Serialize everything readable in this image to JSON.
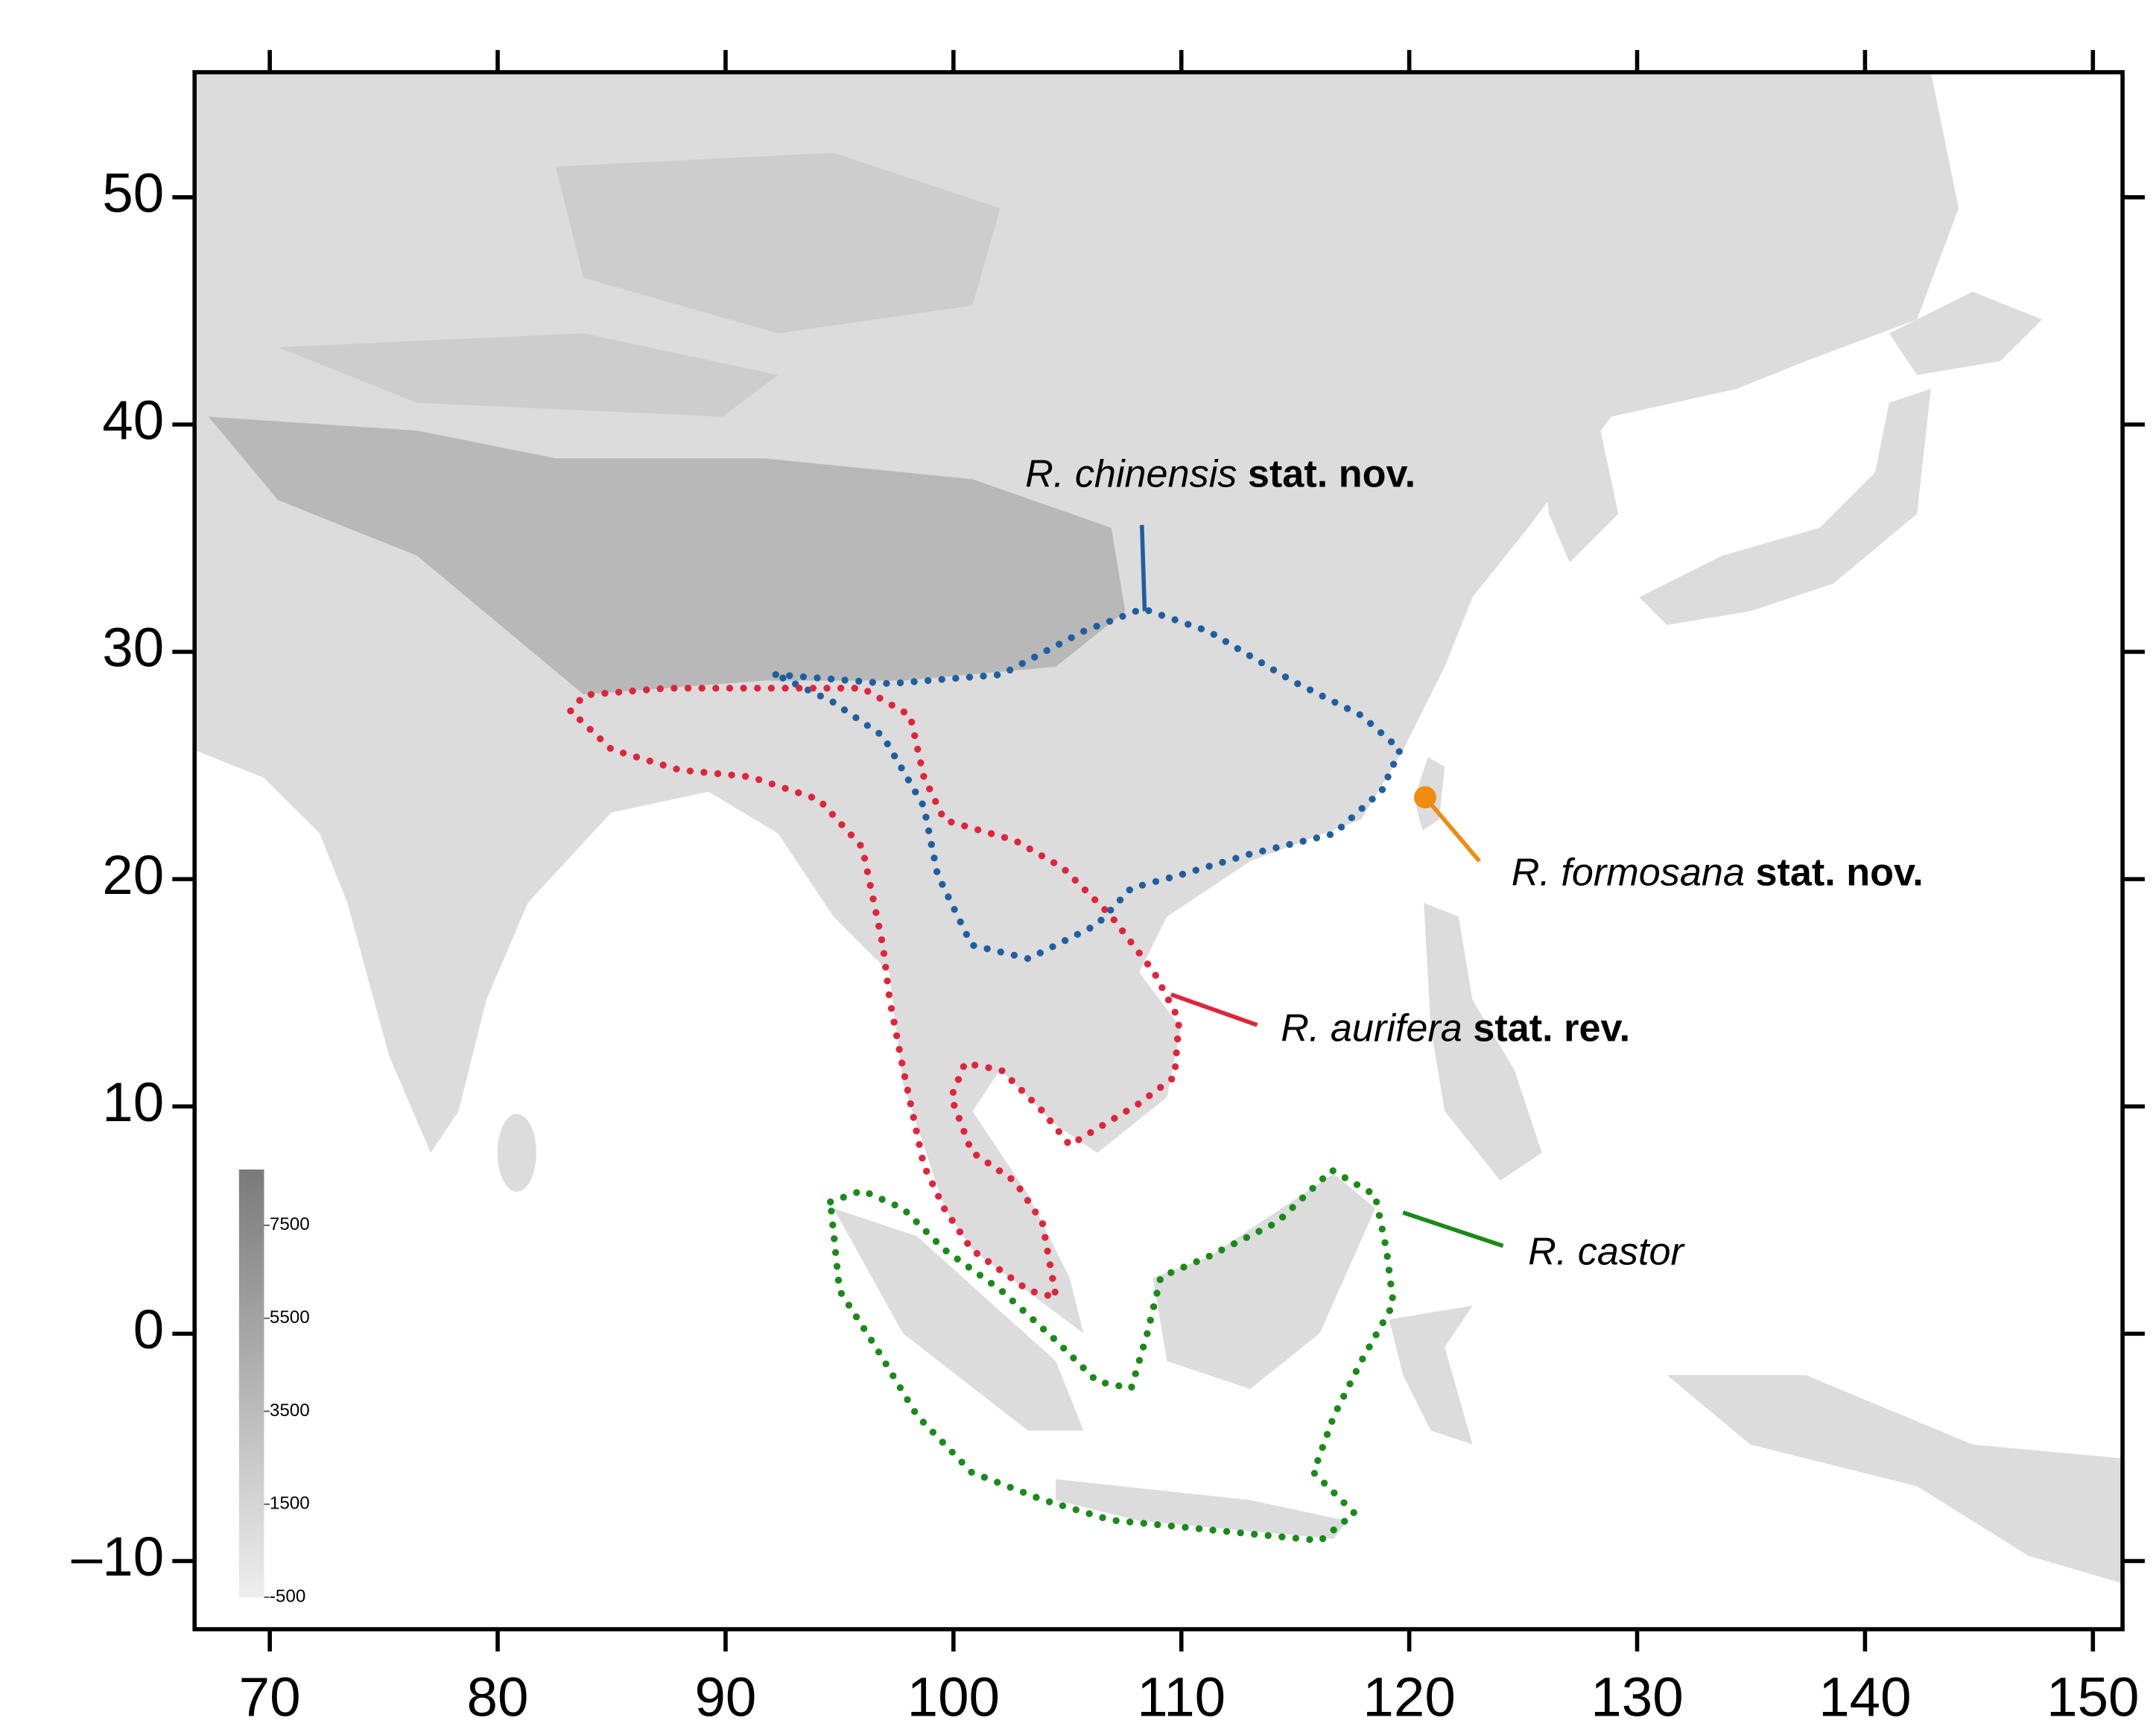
{
  "chart_data": {
    "type": "map",
    "xlim": [
      66.7,
      151.3
    ],
    "ylim": [
      -13.0,
      55.5
    ],
    "xticks": [
      70,
      80,
      90,
      100,
      110,
      120,
      130,
      140,
      150
    ],
    "yticks": [
      {
        "value": -10,
        "label": "–10"
      },
      0,
      10,
      20,
      30,
      40,
      50
    ],
    "colorbar": {
      "clim": [
        -500,
        8700
      ],
      "ticks": [
        7500,
        5500,
        3500,
        1500,
        -500
      ]
    },
    "ranges": [
      {
        "name": "R. chinensis",
        "status": "stat. nov.",
        "color": "#1f5fa0",
        "lon": [
          92.2,
          97.2,
          102.1,
          105.7,
          108.3,
          111.2,
          114.9,
          117.9,
          119.6,
          118.8,
          116.7,
          113.0,
          110.0,
          107.8,
          106.3,
          103.3,
          100.8,
          99.3,
          98.7,
          96.9,
          94.7
        ],
        "lat": [
          29.0,
          28.6,
          29.0,
          30.9,
          31.9,
          30.9,
          28.7,
          27.2,
          25.7,
          23.9,
          22.0,
          21.1,
          20.2,
          19.6,
          18.0,
          16.5,
          17.1,
          20.2,
          23.2,
          26.3,
          27.8
        ]
      },
      {
        "name": "R. aurifera",
        "status": "stat. rev.",
        "color": "#e0243c",
        "lon": [
          83.2,
          83.8,
          87.4,
          92.0,
          96.0,
          98.1,
          98.7,
          99.6,
          102.7,
          104.8,
          105.7,
          106.9,
          108.8,
          109.9,
          109.7,
          108.1,
          105.1,
          103.9,
          102.1,
          100.5,
          99.9,
          100.8,
          102.7,
          103.9,
          104.5,
          103.3,
          100.8,
          99.6,
          98.7,
          97.8,
          97.2,
          96.9,
          96.0,
          94.1,
          91.1,
          88.0,
          85.0
        ],
        "lat": [
          27.4,
          28.1,
          28.4,
          28.4,
          28.4,
          27.2,
          24.5,
          22.6,
          21.7,
          20.5,
          19.6,
          18.4,
          15.9,
          13.8,
          11.3,
          10.1,
          8.3,
          9.8,
          11.6,
          11.9,
          10.4,
          8.0,
          6.7,
          4.9,
          1.6,
          1.9,
          3.7,
          5.5,
          7.4,
          11.6,
          14.7,
          17.1,
          21.4,
          23.5,
          24.5,
          24.8,
          25.7
        ]
      },
      {
        "name": "R. castor",
        "color": "#1a8a1a",
        "lon": [
          94.6,
          96.0,
          97.8,
          99.6,
          102.1,
          104.5,
          106.3,
          107.8,
          108.5,
          109.1,
          111.2,
          114.2,
          116.6,
          118.5,
          119.0,
          119.3,
          117.9,
          116.7,
          115.8,
          117.6,
          116.1,
          113.0,
          110.0,
          106.9,
          103.9,
          100.8,
          98.4,
          96.6,
          95.0
        ],
        "lat": [
          5.8,
          6.3,
          5.5,
          3.7,
          1.9,
          -0.3,
          -2.1,
          -2.4,
          0.0,
          2.5,
          3.4,
          4.9,
          7.2,
          6.1,
          3.7,
          1.3,
          -1.2,
          -3.6,
          -6.1,
          -7.9,
          -9.1,
          -8.8,
          -8.5,
          -8.2,
          -7.3,
          -6.1,
          -3.6,
          -0.6,
          1.9
        ]
      }
    ],
    "point": {
      "name": "R. formosana",
      "status": "stat. nov.",
      "color": "#f08c10",
      "lon": 120.7,
      "lat": 23.6
    }
  }
}
